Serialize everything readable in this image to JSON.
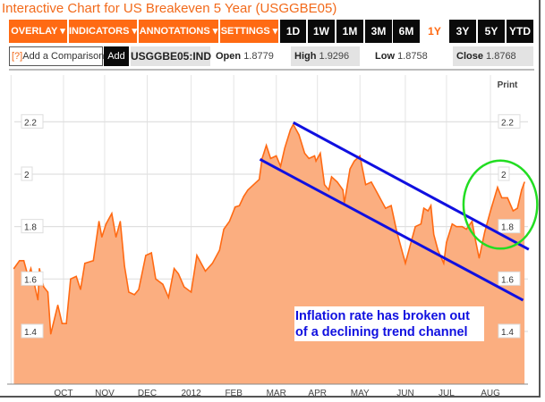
{
  "header": {
    "title": "Interactive Chart for US Breakeven 5 Year (USGGBE05)"
  },
  "toolbar": {
    "menus": [
      "OVERLAY ▾",
      "INDICATORS ▾",
      "ANNOTATIONS ▾",
      "SETTINGS ▾"
    ],
    "ranges": [
      "1D",
      "1W",
      "1M",
      "3M",
      "6M",
      "1Y",
      "3Y",
      "5Y",
      "YTD"
    ],
    "selected_range": "1Y"
  },
  "quote": {
    "comparison_help": "[?]",
    "comparison_placeholder": "Add a Comparison",
    "add_label": "Add",
    "symbol": "USGGBE05:IND",
    "open_label": "Open",
    "open": "1.8779",
    "high_label": "High",
    "high": "1.9296",
    "low_label": "Low",
    "low": "1.8758",
    "close_label": "Close",
    "close": "1.8768"
  },
  "print_label": "Print",
  "colors": {
    "accent": "#ff6a13",
    "area": "#fbae80",
    "line": "#ff6a13",
    "trend": "#1010e0",
    "circle": "#22dd22"
  },
  "chart_data": {
    "type": "area",
    "title": "US Breakeven 5 Year (USGGBE05)",
    "xlabel": "",
    "ylabel": "",
    "x_unit": "days from start (approx.)",
    "ylim": [
      1.2,
      2.3
    ],
    "yticks": [
      1.4,
      1.6,
      1.8,
      2.0,
      2.2
    ],
    "ytick_labels": [
      "1.4",
      "1.6",
      "1.8",
      "2",
      "2.2"
    ],
    "xticks": [
      {
        "label": "OCT",
        "x": 35
      },
      {
        "label": "NOV",
        "x": 64
      },
      {
        "label": "DEC",
        "x": 94
      },
      {
        "label": "2012",
        "x": 125
      },
      {
        "label": "FEB",
        "x": 155
      },
      {
        "label": "MAR",
        "x": 185
      },
      {
        "label": "APR",
        "x": 214
      },
      {
        "label": "MAY",
        "x": 244
      },
      {
        "label": "JUN",
        "x": 276
      },
      {
        "label": "JUL",
        "x": 305
      },
      {
        "label": "AUG",
        "x": 336
      }
    ],
    "xlim": [
      0,
      362
    ],
    "grid": true,
    "x": [
      0,
      4,
      7,
      10,
      12,
      17,
      18,
      21,
      24,
      26,
      31,
      34,
      37,
      40,
      44,
      47,
      50,
      56,
      60,
      62,
      65,
      69,
      72,
      75,
      78,
      81,
      85,
      88,
      93,
      97,
      100,
      105,
      109,
      113,
      116,
      120,
      125,
      129,
      135,
      140,
      145,
      148,
      152,
      156,
      159,
      162,
      165,
      169,
      173,
      175,
      178,
      181,
      185,
      188,
      191,
      195,
      197,
      201,
      205,
      208,
      212,
      213,
      216,
      219,
      222,
      224,
      228,
      232,
      233,
      237,
      240,
      244,
      248,
      252,
      256,
      260,
      262,
      266,
      270,
      273,
      276,
      279,
      283,
      287,
      289,
      292,
      294,
      296,
      299,
      303,
      305,
      309,
      312,
      316,
      319,
      323,
      325,
      328,
      332,
      336,
      341,
      344,
      348,
      352,
      355,
      358,
      360
    ],
    "values": [
      1.64,
      1.67,
      1.67,
      1.61,
      1.64,
      1.52,
      1.64,
      1.57,
      1.55,
      1.39,
      1.5,
      1.43,
      1.43,
      1.6,
      1.61,
      1.56,
      1.66,
      1.67,
      1.82,
      1.76,
      1.81,
      1.85,
      1.76,
      1.82,
      1.65,
      1.55,
      1.54,
      1.56,
      1.69,
      1.7,
      1.6,
      1.58,
      1.53,
      1.64,
      1.62,
      1.57,
      1.55,
      1.69,
      1.63,
      1.66,
      1.71,
      1.79,
      1.82,
      1.875,
      1.88,
      1.915,
      1.94,
      1.96,
      1.98,
      2.06,
      2.11,
      2.06,
      2.07,
      2.03,
      2.1,
      2.17,
      2.19,
      2.15,
      2.08,
      2.06,
      2.07,
      2.05,
      2.08,
      1.96,
      1.94,
      1.99,
      1.97,
      1.94,
      1.89,
      2.02,
      2.05,
      2.07,
      1.96,
      1.97,
      1.93,
      1.89,
      1.87,
      1.88,
      1.78,
      1.72,
      1.66,
      1.72,
      1.8,
      1.81,
      1.87,
      1.86,
      1.88,
      1.77,
      1.71,
      1.66,
      1.74,
      1.81,
      1.8,
      1.8,
      1.79,
      1.82,
      1.76,
      1.68,
      1.78,
      1.86,
      1.95,
      1.91,
      1.91,
      1.86,
      1.87,
      1.94,
      1.97
    ],
    "trend_lines": [
      {
        "name": "upper",
        "from": [
          197,
          2.197
        ],
        "to": [
          363,
          1.713
        ]
      },
      {
        "name": "lower",
        "from": [
          173.5,
          2.057
        ],
        "to": [
          359,
          1.519
        ]
      }
    ],
    "highlight_ellipse": {
      "cx": 343,
      "cy": 1.884,
      "rx": 26,
      "ry": 0.168
    },
    "annotation": {
      "lines": [
        "Inflation rate has broken out",
        "of a declining trend channel"
      ]
    }
  }
}
